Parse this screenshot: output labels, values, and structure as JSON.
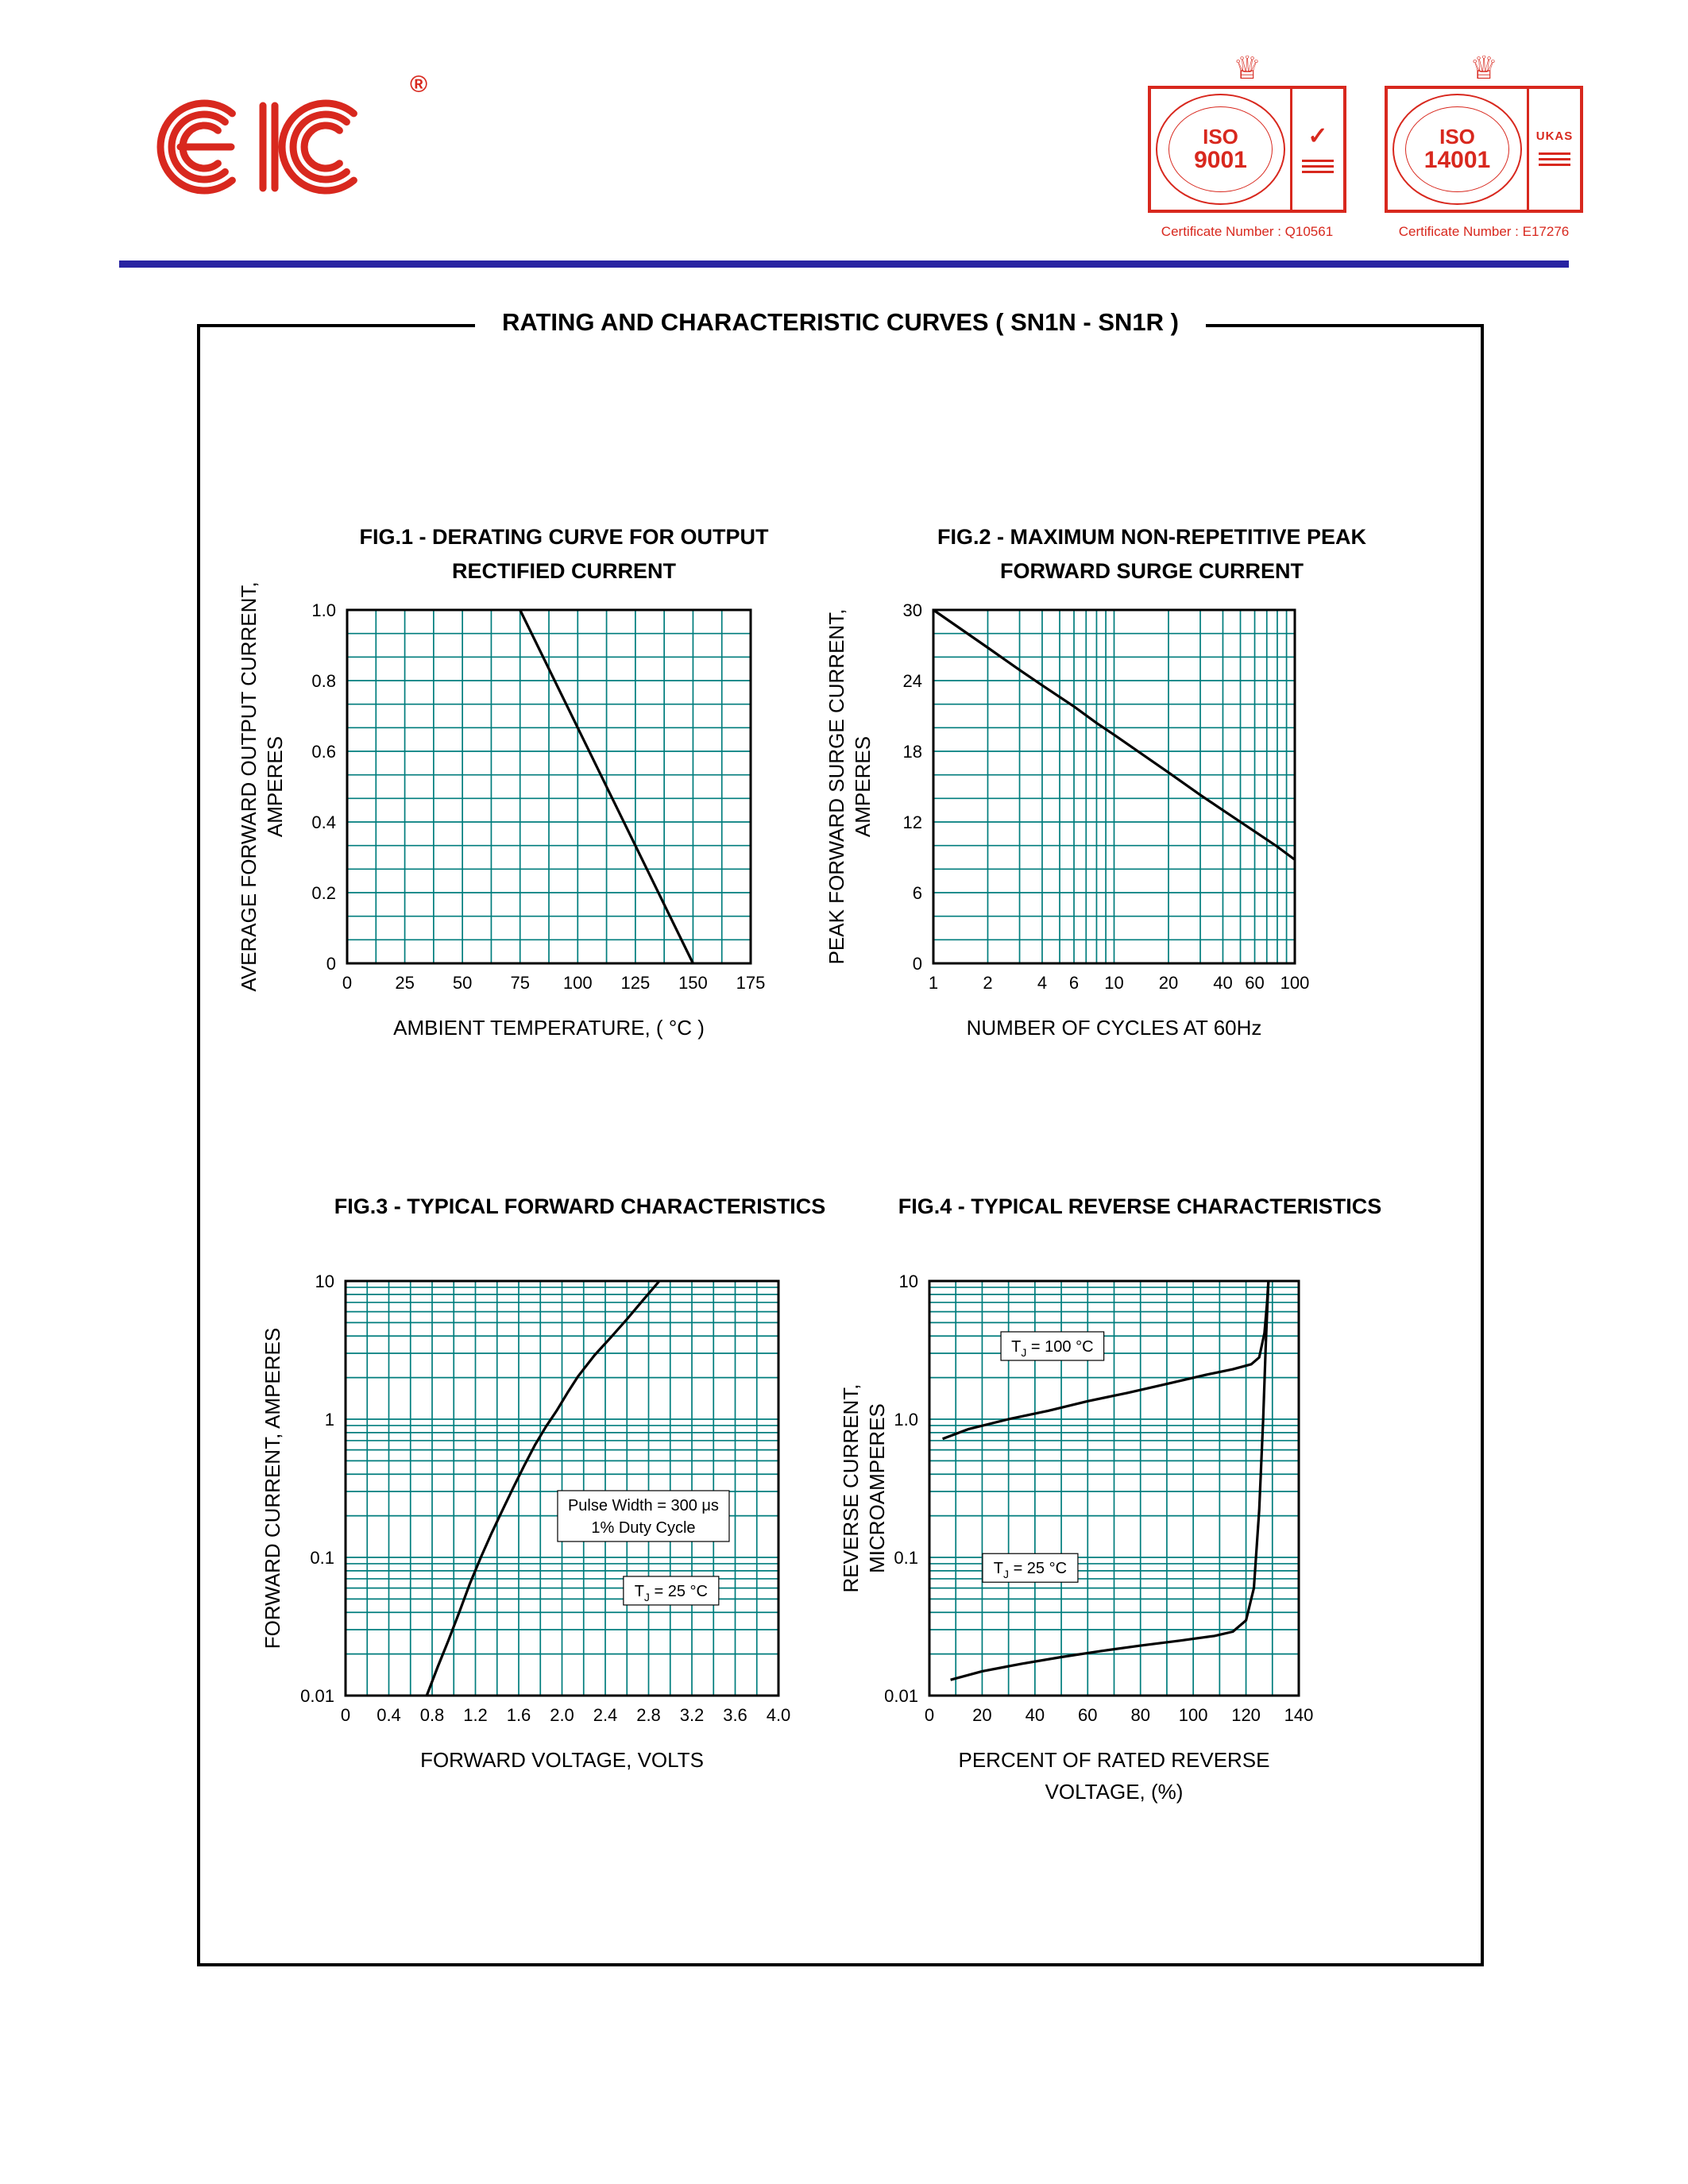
{
  "header": {
    "logo_text": "EIC",
    "registered_mark": "®",
    "stamps": [
      {
        "iso_line1": "ISO",
        "iso_line2": "9001",
        "side_label": "✓",
        "caption": "Certificate Number : Q10561"
      },
      {
        "iso_line1": "ISO",
        "iso_line2": "14001",
        "side_label": "UKAS",
        "caption": "Certificate Number : E17276"
      }
    ]
  },
  "icons": {
    "crown": "♕"
  },
  "box_title": "RATING AND CHARACTERISTIC CURVES ( SN1N - SN1R )",
  "colors": {
    "brand_red": "#d8281e",
    "rule_blue": "#2823a2",
    "grid_teal": "#007d7d",
    "curve": "#000000"
  },
  "chart_data": [
    {
      "type": "line",
      "title_lines": [
        "FIG.1 - DERATING CURVE FOR OUTPUT",
        "RECTIFIED CURRENT"
      ],
      "xlabel_lines": [
        "AMBIENT TEMPERATURE, ( °C )"
      ],
      "ylabel_lines": [
        "AVERAGE FORWARD OUTPUT CURRENT,",
        "AMPERES"
      ],
      "x": {
        "scale": "linear",
        "min": 0,
        "max": 175,
        "sub": 2,
        "ticks": [
          {
            "v": 0,
            "label": "0"
          },
          {
            "v": 25,
            "label": "25"
          },
          {
            "v": 50,
            "label": "50"
          },
          {
            "v": 75,
            "label": "75"
          },
          {
            "v": 100,
            "label": "100"
          },
          {
            "v": 125,
            "label": "125"
          },
          {
            "v": 150,
            "label": "150"
          },
          {
            "v": 175,
            "label": "175"
          }
        ]
      },
      "y": {
        "scale": "linear",
        "min": 0,
        "max": 1,
        "sub": 3,
        "ticks": [
          {
            "v": 0,
            "label": "0"
          },
          {
            "v": 0.2,
            "label": "0.2"
          },
          {
            "v": 0.4,
            "label": "0.4"
          },
          {
            "v": 0.6,
            "label": "0.6"
          },
          {
            "v": 0.8,
            "label": "0.8"
          },
          {
            "v": 1,
            "label": "1.0"
          }
        ]
      },
      "series": [
        {
          "name": "derating",
          "points": [
            [
              75,
              1
            ],
            [
              150,
              0
            ]
          ]
        }
      ],
      "annotations": []
    },
    {
      "type": "line",
      "title_lines": [
        "FIG.2 - MAXIMUM NON-REPETITIVE PEAK",
        "FORWARD SURGE CURRENT"
      ],
      "xlabel_lines": [
        "NUMBER OF CYCLES AT 60Hz"
      ],
      "ylabel_lines": [
        "PEAK FORWARD SURGE CURRENT,",
        "AMPERES"
      ],
      "x": {
        "scale": "log",
        "min": 1,
        "max": 100,
        "ticks": [
          {
            "v": 1,
            "label": "1"
          },
          {
            "v": 2,
            "label": "2"
          },
          {
            "v": 4,
            "label": "4"
          },
          {
            "v": 6,
            "label": "6"
          },
          {
            "v": 10,
            "label": "10"
          },
          {
            "v": 20,
            "label": "20"
          },
          {
            "v": 40,
            "label": "40"
          },
          {
            "v": 60,
            "label": "60"
          },
          {
            "v": 100,
            "label": "100"
          }
        ]
      },
      "y": {
        "scale": "linear",
        "min": 0,
        "max": 30,
        "sub": 3,
        "ticks": [
          {
            "v": 0,
            "label": "0"
          },
          {
            "v": 6,
            "label": "6"
          },
          {
            "v": 12,
            "label": "12"
          },
          {
            "v": 18,
            "label": "18"
          },
          {
            "v": 24,
            "label": "24"
          },
          {
            "v": 30,
            "label": "30"
          }
        ]
      },
      "series": [
        {
          "name": "surge",
          "points": [
            [
              1,
              30
            ],
            [
              2,
              26.8
            ],
            [
              3,
              24.9
            ],
            [
              4,
              23.6
            ],
            [
              6,
              21.8
            ],
            [
              8,
              20.4
            ],
            [
              10,
              19.4
            ],
            [
              20,
              16.2
            ],
            [
              30,
              14.3
            ],
            [
              40,
              13
            ],
            [
              60,
              11.2
            ],
            [
              80,
              9.9
            ],
            [
              100,
              8.8
            ]
          ]
        }
      ],
      "annotations": []
    },
    {
      "type": "line",
      "title_lines": [
        "FIG.3 - TYPICAL FORWARD CHARACTERISTICS"
      ],
      "xlabel_lines": [
        "FORWARD VOLTAGE, VOLTS"
      ],
      "ylabel_lines": [
        "FORWARD CURRENT, AMPERES"
      ],
      "x": {
        "scale": "linear",
        "min": 0,
        "max": 4,
        "sub": 2,
        "ticks": [
          {
            "v": 0,
            "label": "0"
          },
          {
            "v": 0.4,
            "label": "0.4"
          },
          {
            "v": 0.8,
            "label": "0.8"
          },
          {
            "v": 1.2,
            "label": "1.2"
          },
          {
            "v": 1.6,
            "label": "1.6"
          },
          {
            "v": 2,
            "label": "2.0"
          },
          {
            "v": 2.4,
            "label": "2.4"
          },
          {
            "v": 2.8,
            "label": "2.8"
          },
          {
            "v": 3.2,
            "label": "3.2"
          },
          {
            "v": 3.6,
            "label": "3.6"
          },
          {
            "v": 4,
            "label": "4.0"
          }
        ]
      },
      "y": {
        "scale": "log",
        "min": 0.01,
        "max": 10,
        "ticks": [
          {
            "v": 10,
            "label": "10"
          },
          {
            "v": 1,
            "label": "1"
          },
          {
            "v": 0.1,
            "label": "0.1"
          },
          {
            "v": 0.01,
            "label": "0.01"
          }
        ]
      },
      "series": [
        {
          "name": "forward",
          "points": [
            [
              0.75,
              0.01
            ],
            [
              0.85,
              0.016
            ],
            [
              0.95,
              0.025
            ],
            [
              1.05,
              0.04
            ],
            [
              1.15,
              0.065
            ],
            [
              1.25,
              0.1
            ],
            [
              1.35,
              0.15
            ],
            [
              1.45,
              0.22
            ],
            [
              1.55,
              0.32
            ],
            [
              1.65,
              0.46
            ],
            [
              1.75,
              0.65
            ],
            [
              1.85,
              0.88
            ],
            [
              1.95,
              1.15
            ],
            [
              2.05,
              1.55
            ],
            [
              2.15,
              2.05
            ],
            [
              2.3,
              2.9
            ],
            [
              2.45,
              3.9
            ],
            [
              2.6,
              5.3
            ],
            [
              2.75,
              7.3
            ],
            [
              2.9,
              10
            ]
          ]
        }
      ],
      "annotations": [
        {
          "fx": 0.688,
          "fy": 0.567,
          "lines": [
            [
              {
                "t": "Pulse Width = 300 μs"
              }
            ],
            [
              {
                "t": "1% Duty Cycle"
              }
            ]
          ]
        },
        {
          "fx": 0.752,
          "fy": 0.747,
          "lines": [
            [
              {
                "t": "T"
              },
              {
                "t": "J",
                "sub": true
              },
              {
                "t": " = 25 °C"
              }
            ]
          ]
        }
      ]
    },
    {
      "type": "line",
      "title_lines": [
        "FIG.4 - TYPICAL REVERSE CHARACTERISTICS"
      ],
      "xlabel_lines": [
        "PERCENT OF RATED REVERSE",
        "VOLTAGE, (%)"
      ],
      "ylabel_lines": [
        "REVERSE CURRENT,",
        "MICROAMPERES"
      ],
      "x": {
        "scale": "linear",
        "min": 0,
        "max": 140,
        "sub": 2,
        "ticks": [
          {
            "v": 0,
            "label": "0"
          },
          {
            "v": 20,
            "label": "20"
          },
          {
            "v": 40,
            "label": "40"
          },
          {
            "v": 60,
            "label": "60"
          },
          {
            "v": 80,
            "label": "80"
          },
          {
            "v": 100,
            "label": "100"
          },
          {
            "v": 120,
            "label": "120"
          },
          {
            "v": 140,
            "label": "140"
          }
        ]
      },
      "y": {
        "scale": "log",
        "min": 0.01,
        "max": 10,
        "ticks": [
          {
            "v": 10,
            "label": "10"
          },
          {
            "v": 1,
            "label": "1.0"
          },
          {
            "v": 0.1,
            "label": "0.1"
          },
          {
            "v": 0.01,
            "label": "0.01"
          }
        ]
      },
      "series": [
        {
          "name": "tj100",
          "points": [
            [
              5,
              0.72
            ],
            [
              15,
              0.85
            ],
            [
              30,
              1
            ],
            [
              45,
              1.15
            ],
            [
              60,
              1.35
            ],
            [
              75,
              1.55
            ],
            [
              90,
              1.8
            ],
            [
              105,
              2.1
            ],
            [
              115,
              2.3
            ],
            [
              122,
              2.5
            ],
            [
              125,
              2.8
            ],
            [
              127,
              4.2
            ],
            [
              128,
              7
            ],
            [
              128.5,
              10
            ]
          ]
        },
        {
          "name": "tj25",
          "points": [
            [
              8,
              0.013
            ],
            [
              20,
              0.015
            ],
            [
              35,
              0.017
            ],
            [
              50,
              0.019
            ],
            [
              65,
              0.021
            ],
            [
              80,
              0.023
            ],
            [
              95,
              0.025
            ],
            [
              108,
              0.027
            ],
            [
              115,
              0.029
            ],
            [
              120,
              0.035
            ],
            [
              123,
              0.06
            ],
            [
              125,
              0.22
            ],
            [
              126.5,
              1
            ],
            [
              127.5,
              3.5
            ],
            [
              128.5,
              10
            ]
          ]
        }
      ],
      "annotations": [
        {
          "fx": 0.333,
          "fy": 0.157,
          "lines": [
            [
              {
                "t": "T"
              },
              {
                "t": "J",
                "sub": true
              },
              {
                "t": " = 100 °C"
              }
            ]
          ]
        },
        {
          "fx": 0.273,
          "fy": 0.692,
          "lines": [
            [
              {
                "t": "T"
              },
              {
                "t": "J",
                "sub": true
              },
              {
                "t": " = 25 °C"
              }
            ]
          ]
        }
      ]
    }
  ]
}
